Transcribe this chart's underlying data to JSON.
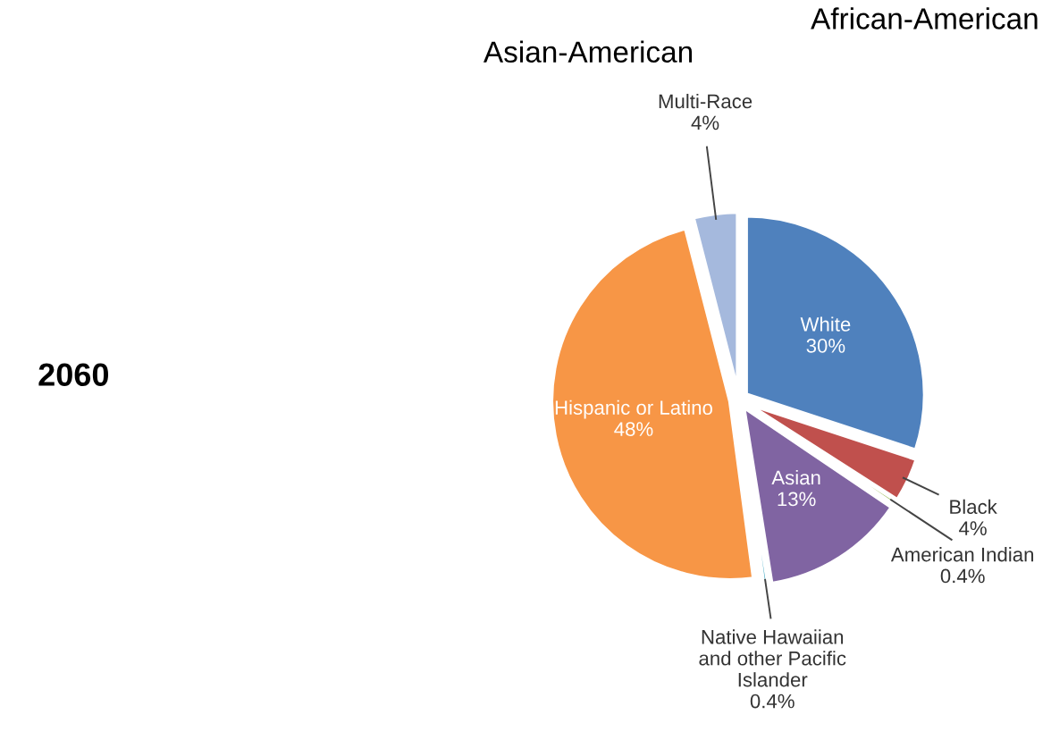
{
  "chart_data": {
    "type": "pie",
    "title": "2060",
    "annotations": [
      "Asian-American",
      "African-American"
    ],
    "categories": [
      "White",
      "Black",
      "American Indian",
      "Asian",
      "Native Hawaiian and other Pacific Islander",
      "Hispanic or Latino",
      "Multi-Race"
    ],
    "values": [
      30,
      4,
      0.4,
      13,
      0.4,
      48,
      4
    ],
    "value_labels": [
      "30%",
      "4%",
      "0.4%",
      "13%",
      "0.4%",
      "48%",
      "4%"
    ],
    "colors": [
      "#4f81bd",
      "#c0504d",
      "#9bbb59",
      "#8064a2",
      "#4bacc6",
      "#f79646",
      "#a5b9dd"
    ],
    "legend": false
  }
}
